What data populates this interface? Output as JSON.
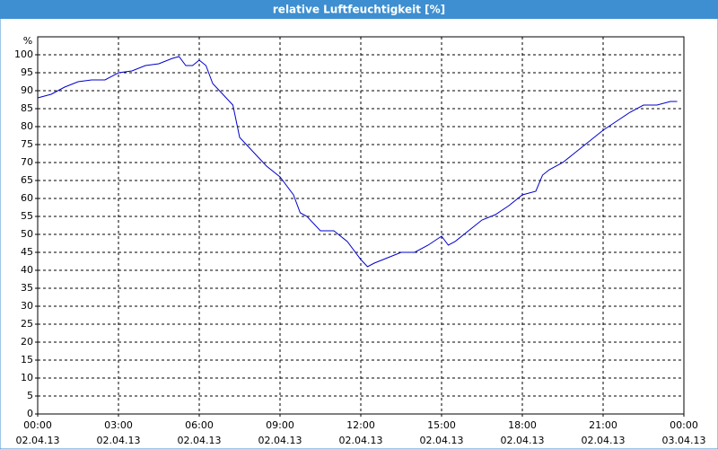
{
  "chart_data": {
    "type": "line",
    "title": "relative Luftfeuchtigkeit [%]",
    "ylabel": "%",
    "x": [
      0,
      0.5,
      1,
      1.5,
      2,
      2.5,
      3,
      3.5,
      4,
      4.5,
      5,
      5.25,
      5.5,
      5.75,
      6,
      6.25,
      6.5,
      7,
      7.25,
      7.5,
      8,
      8.5,
      9,
      9.5,
      9.75,
      10,
      10.5,
      11,
      11.5,
      12,
      12.25,
      12.5,
      13,
      13.5,
      14,
      14.5,
      15,
      15.25,
      15.5,
      16,
      16.5,
      17,
      17.5,
      18,
      18.5,
      18.75,
      19,
      19.5,
      20,
      20.5,
      21,
      21.5,
      22,
      22.5,
      23,
      23.5,
      23.75
    ],
    "series": [
      {
        "name": "relative Luftfeuchtigkeit",
        "color": "#0000cc",
        "values": [
          88,
          89,
          91,
          92.5,
          93,
          93,
          95,
          95.5,
          97,
          97.5,
          99,
          99.5,
          97,
          97,
          98.5,
          97,
          92,
          88,
          86,
          77,
          73,
          69,
          66,
          61,
          56,
          55,
          51,
          51,
          48,
          43,
          41,
          42,
          43.5,
          45,
          45,
          47,
          49.5,
          47,
          48,
          51,
          54,
          55.5,
          58,
          61,
          62,
          66.5,
          68,
          70,
          73,
          76,
          79,
          81.5,
          84,
          86,
          86,
          87,
          87
        ]
      }
    ],
    "xlim": [
      0,
      24
    ],
    "xticks": [
      {
        "value": 0,
        "label": "00:00"
      },
      {
        "value": 3,
        "label": "03:00"
      },
      {
        "value": 6,
        "label": "06:00"
      },
      {
        "value": 9,
        "label": "09:00"
      },
      {
        "value": 12,
        "label": "12:00"
      },
      {
        "value": 15,
        "label": "15:00"
      },
      {
        "value": 18,
        "label": "18:00"
      },
      {
        "value": 21,
        "label": "21:00"
      },
      {
        "value": 24,
        "label": "00:00"
      }
    ],
    "xtick_dates": [
      "02.04.13",
      "02.04.13",
      "02.04.13",
      "02.04.13",
      "02.04.13",
      "02.04.13",
      "02.04.13",
      "02.04.13",
      "03.04.13"
    ],
    "ylim": [
      0,
      105
    ],
    "yticks": [
      0,
      5,
      10,
      15,
      20,
      25,
      30,
      35,
      40,
      45,
      50,
      55,
      60,
      65,
      70,
      75,
      80,
      85,
      90,
      95,
      100
    ],
    "grid": true
  }
}
